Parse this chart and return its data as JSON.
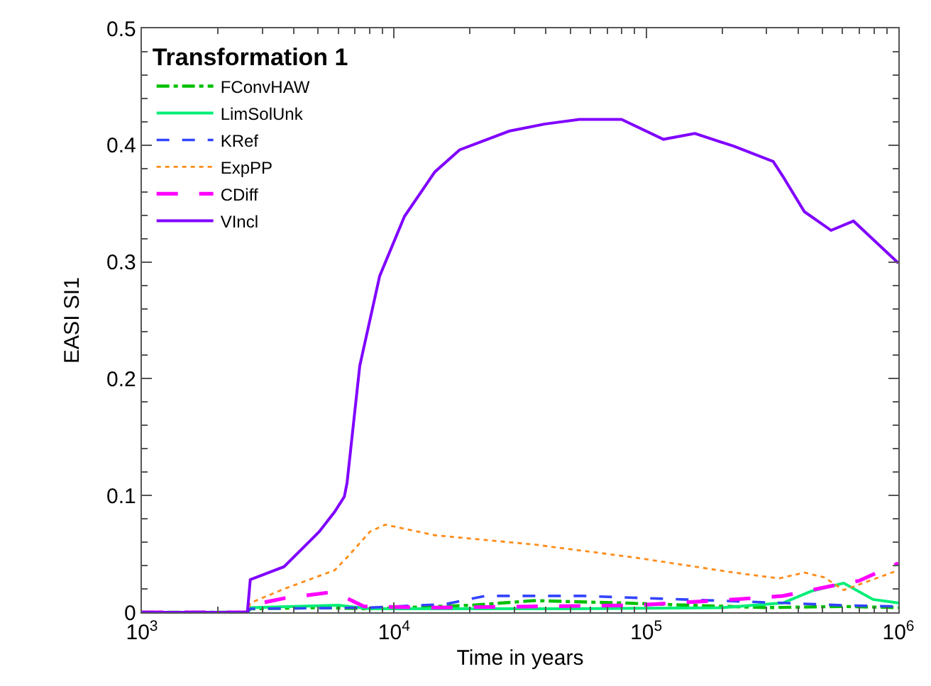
{
  "chart_data": {
    "type": "line",
    "legend_title": "Transformation 1",
    "xlabel": "Time in years",
    "ylabel": "EASI SI1",
    "log": "x",
    "grid": false,
    "legend": "top left",
    "marker": "none",
    "xlim": [
      1000,
      1000000
    ],
    "xticks": [
      {
        "value": 1000,
        "label": "10$^{3}$"
      },
      {
        "value": 10000,
        "label": "10$^{4}$"
      },
      {
        "value": 100000,
        "label": "10$^{5}$"
      },
      {
        "value": 1000000,
        "label": "10$^{6}$"
      }
    ],
    "ylim": [
      0,
      0.5
    ],
    "yticks": [
      0,
      0.1,
      0.2,
      0.3,
      0.4,
      0.5
    ],
    "series": [
      {
        "name": "FConvHAW",
        "color": "#00c000",
        "line_style": "dashdot",
        "x": [
          1000,
          2620,
          2690,
          5000,
          8000,
          20000,
          36000,
          80000,
          150000,
          300000,
          600000,
          1000000
        ],
        "values": [
          0,
          0,
          0.003,
          0.004,
          0.003,
          0.006,
          0.01,
          0.008,
          0.006,
          0.004,
          0.005,
          0.004
        ]
      },
      {
        "name": "LimSolUnk",
        "color": "#00ee77",
        "line_style": "solid",
        "x": [
          1000,
          2620,
          2690,
          6000,
          8000,
          50000,
          200000,
          349000,
          450000,
          607000,
          794000,
          1000000
        ],
        "values": [
          0,
          0,
          0.004,
          0.006,
          0.003,
          0.003,
          0.004,
          0.008,
          0.018,
          0.025,
          0.011,
          0.008
        ]
      },
      {
        "name": "KRef",
        "color": "#3344ff",
        "line_style": "dashed",
        "x": [
          1000,
          2620,
          2690,
          8000,
          16000,
          23000,
          56400,
          140000,
          349000,
          600000,
          1000000
        ],
        "values": [
          0,
          0,
          0.003,
          0.004,
          0.007,
          0.014,
          0.014,
          0.011,
          0.008,
          0.006,
          0.005
        ]
      },
      {
        "name": "ExpPP",
        "color": "#ff8c1a",
        "line_style": "dotted",
        "x": [
          1000,
          2620,
          2690,
          3660,
          5810,
          6510,
          8020,
          9220,
          14500,
          36000,
          89500,
          223000,
          336000,
          424000,
          507000,
          607000,
          1000000
        ],
        "values": [
          0,
          0,
          0.008,
          0.02,
          0.036,
          0.047,
          0.069,
          0.075,
          0.066,
          0.058,
          0.047,
          0.034,
          0.029,
          0.034,
          0.03,
          0.019,
          0.036
        ]
      },
      {
        "name": "CDiff",
        "color": "#ff00ff",
        "line_style": "longdash",
        "x": [
          1000,
          2620,
          2690,
          3660,
          5520,
          6510,
          7600,
          14500,
          89500,
          223000,
          349000,
          555000,
          698000,
          1000000
        ],
        "values": [
          0,
          0,
          0.006,
          0.012,
          0.017,
          0.012,
          0.005,
          0.004,
          0.006,
          0.011,
          0.014,
          0.023,
          0.027,
          0.042
        ]
      },
      {
        "name": "VIncl",
        "color": "#8000ff",
        "line_style": "solid",
        "x": [
          1000,
          2620,
          2690,
          3660,
          5050,
          5810,
          6350,
          6510,
          7310,
          8770,
          11000,
          14500,
          18200,
          28600,
          39400,
          54300,
          79800,
          117000,
          156000,
          223000,
          319000,
          349000,
          424000,
          541000,
          664000,
          1000000
        ],
        "values": [
          0,
          0,
          0.028,
          0.039,
          0.069,
          0.086,
          0.099,
          0.111,
          0.211,
          0.288,
          0.339,
          0.377,
          0.396,
          0.412,
          0.418,
          0.422,
          0.422,
          0.405,
          0.41,
          0.399,
          0.386,
          0.373,
          0.343,
          0.327,
          0.335,
          0.299
        ]
      }
    ]
  }
}
